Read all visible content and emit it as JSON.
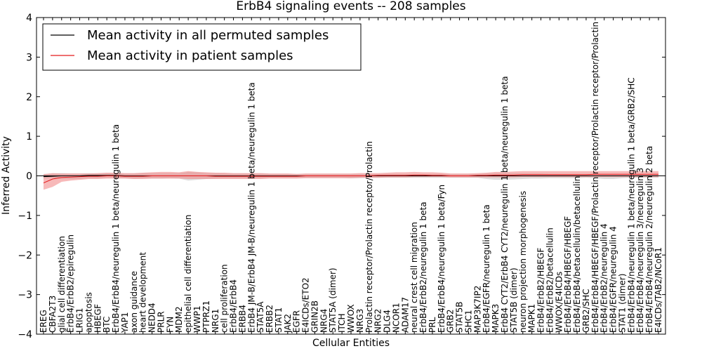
{
  "chart_data": {
    "type": "line",
    "title": "ErbB4 signaling events -- 208 samples",
    "xlabel": "Cellular Entities",
    "ylabel": "Inferred Activity",
    "ylim": [
      -4,
      4
    ],
    "yticks": [
      -4,
      -3,
      -2,
      -1,
      0,
      1,
      2,
      3,
      4
    ],
    "grid": false,
    "legend_position": "top-left",
    "colors": {
      "permuted_line": "#000000",
      "patient_line": "#e41a1c",
      "patient_band": "#f08080",
      "permuted_band": "#c8c8c8"
    },
    "categories": [
      "EREG",
      "CBFA2T3",
      "glial cell differentiation",
      "ErbB4/ErbB2/epiregulin",
      "LRIG1",
      "apoptosis",
      "HBEGF",
      "BTC",
      "ErbB4/ErbB4/neuregulin 1 beta/neuregulin 1 beta",
      "YAP1",
      "axon guidance",
      "heart development",
      "NEDD4",
      "PRLR",
      "FYN",
      "MDM2",
      "epithelial cell differentiation",
      "WWP1",
      "PTPRZ1",
      "NRG1",
      "cell proliferation",
      "ErbB4/ErbB4",
      "ERBB4",
      "ErbB4 JM-B/ErbB4 JM-B/neuregulin 1 beta/neuregulin 1 beta",
      "STAT5A",
      "ERBB2",
      "STAT1",
      "JAK2",
      "EGFR",
      "E4ICDs/ETO2",
      "GRIN2B",
      "NRG4",
      "STAT5A (dimer)",
      "ITCH",
      "WWOX",
      "NRG3",
      "Prolactin receptor/Prolactin receptor/Prolactin",
      "NRG2",
      "DLG4",
      "NCOR1",
      "ADAM17",
      "neural crest cell migration",
      "ErbB4/ErbB2/neuregulin 1 beta",
      "PRL",
      "ErbB4/ErbB4/neuregulin 1 beta/Fyn",
      "GRB2",
      "STAT5B",
      "SHC1",
      "MAP3K7IP2",
      "ErbB4/EGFR/neuregulin 1 beta",
      "MAPK3",
      "ErbB4 CYT2/ErbB4 CYT2/neuregulin 1 beta/neuregulin 1 beta",
      "STAT5B (dimer)",
      "neuron projection morphogenesis",
      "MAPK1",
      "ErbB4/ErbB2/HBEGF",
      "ErbB4/ErbB2/betacellulin",
      "WWOX/E4ICDs",
      "ErbB4/ErbB4/HBEGF/HBEGF",
      "ErbB4/ErbB4/betacellulin/betacellulin",
      "GRB2/SHC",
      "ErbB4/ErbB4/HBEGF/HBEGF/Prolactin receptor/Prolactin receptor/Prolactin",
      "ErbB4/ErbB2/neuregulin 4",
      "ErbB4/EGFR/neuregulin 4",
      "STAT1 (dimer)",
      "ErbB4/ErbB4/neuregulin 1 beta/neuregulin 1 beta/GRB2/SHC",
      "ErbB4/ErbB4/neuregulin 3/neuregulin 3",
      "ErbB4/ErbB4/neuregulin 2/neuregulin 2 beta",
      "E4ICDs/TAB2/NCoR1"
    ],
    "series": [
      {
        "name": "Mean activity in all permuted samples",
        "values": [
          -0.02,
          -0.01,
          0,
          0,
          0,
          0.01,
          0.01,
          0.01,
          0.01,
          0,
          0,
          0,
          0,
          0,
          0,
          0,
          0,
          0,
          0,
          0,
          0,
          0,
          0,
          0,
          0,
          0,
          0,
          0,
          0,
          0,
          0,
          0,
          0,
          0,
          0,
          0,
          0,
          0,
          0,
          0,
          0,
          0,
          0,
          0,
          0,
          0,
          0,
          0,
          0,
          0,
          0,
          0,
          0,
          0,
          0,
          0,
          0,
          0,
          0,
          0,
          0,
          0,
          0,
          0,
          0,
          0,
          0,
          0,
          0
        ],
        "band_low": [
          -0.07,
          -0.05,
          -0.08,
          -0.08,
          -0.08,
          -0.06,
          -0.06,
          -0.05,
          -0.05,
          -0.06,
          -0.07,
          -0.06,
          -0.07,
          -0.07,
          -0.06,
          -0.07,
          -0.12,
          -0.1,
          -0.08,
          -0.07,
          -0.06,
          -0.06,
          -0.06,
          -0.06,
          -0.06,
          -0.05,
          -0.05,
          -0.05,
          -0.05,
          -0.05,
          -0.05,
          -0.05,
          -0.05,
          -0.05,
          -0.06,
          -0.06,
          -0.05,
          -0.05,
          -0.05,
          -0.05,
          -0.05,
          -0.05,
          -0.05,
          -0.05,
          -0.05,
          -0.05,
          -0.05,
          -0.05,
          -0.05,
          -0.08,
          -0.1,
          -0.1,
          -0.09,
          -0.08,
          -0.07,
          -0.07,
          -0.06,
          -0.06,
          -0.06,
          -0.06,
          -0.05,
          -0.06,
          -0.08,
          -0.08,
          -0.06,
          -0.05,
          -0.05,
          -0.05,
          -0.05
        ],
        "band_high": [
          0.05,
          0.06,
          0.07,
          0.06,
          0.06,
          0.07,
          0.06,
          0.07,
          0.06,
          0.06,
          0.06,
          0.07,
          0.07,
          0.07,
          0.07,
          0.07,
          0.1,
          0.09,
          0.07,
          0.07,
          0.06,
          0.06,
          0.06,
          0.06,
          0.06,
          0.05,
          0.05,
          0.05,
          0.05,
          0.05,
          0.05,
          0.05,
          0.05,
          0.05,
          0.05,
          0.05,
          0.05,
          0.05,
          0.05,
          0.05,
          0.05,
          0.05,
          0.05,
          0.05,
          0.05,
          0.05,
          0.05,
          0.05,
          0.05,
          0.06,
          0.07,
          0.07,
          0.07,
          0.06,
          0.06,
          0.06,
          0.05,
          0.05,
          0.05,
          0.05,
          0.05,
          0.05,
          0.05,
          0.05,
          0.05,
          0.05,
          0.05,
          0.05,
          0.05
        ]
      },
      {
        "name": "Mean activity in patient samples",
        "values": [
          -0.18,
          -0.08,
          -0.04,
          -0.03,
          -0.02,
          -0.01,
          -0.01,
          0,
          0,
          -0.01,
          -0.01,
          -0.01,
          0,
          0,
          0,
          0,
          0,
          0,
          0,
          -0.01,
          -0.01,
          -0.01,
          -0.01,
          -0.01,
          -0.01,
          -0.01,
          -0.01,
          -0.01,
          -0.01,
          0,
          0,
          0,
          0,
          0,
          0,
          0,
          0,
          0.01,
          0.01,
          0.01,
          0.01,
          0.02,
          0.02,
          0.01,
          0.01,
          0,
          0,
          0,
          0.01,
          0.01,
          0.02,
          0.02,
          0.02,
          0.03,
          0.03,
          0.03,
          0.03,
          0.03,
          0.03,
          0.03,
          0.03,
          0.04,
          0.04,
          0.04,
          0.04,
          0.04,
          0.04,
          0.04,
          0.04
        ],
        "band_low": [
          -0.35,
          -0.28,
          -0.15,
          -0.12,
          -0.1,
          -0.08,
          -0.08,
          -0.07,
          -0.07,
          -0.07,
          -0.08,
          -0.08,
          -0.07,
          -0.07,
          -0.07,
          -0.07,
          -0.08,
          -0.08,
          -0.08,
          -0.08,
          -0.08,
          -0.08,
          -0.08,
          -0.08,
          -0.08,
          -0.07,
          -0.07,
          -0.07,
          -0.07,
          -0.06,
          -0.06,
          -0.06,
          -0.06,
          -0.06,
          -0.06,
          -0.05,
          -0.05,
          -0.05,
          -0.04,
          -0.04,
          -0.04,
          -0.03,
          -0.03,
          -0.03,
          -0.03,
          -0.04,
          -0.04,
          -0.04,
          -0.04,
          -0.04,
          -0.04,
          -0.04,
          -0.04,
          -0.03,
          -0.03,
          -0.03,
          -0.03,
          -0.03,
          -0.03,
          -0.03,
          -0.03,
          -0.03,
          -0.03,
          -0.03,
          -0.03,
          -0.03,
          -0.03,
          -0.03,
          -0.03
        ],
        "band_high": [
          0.04,
          0.07,
          0.06,
          0.06,
          0.06,
          0.06,
          0.07,
          0.08,
          0.08,
          0.07,
          0.07,
          0.08,
          0.09,
          0.1,
          0.1,
          0.09,
          0.12,
          0.1,
          0.09,
          0.08,
          0.08,
          0.07,
          0.07,
          0.07,
          0.07,
          0.06,
          0.06,
          0.06,
          0.05,
          0.06,
          0.06,
          0.06,
          0.06,
          0.06,
          0.06,
          0.07,
          0.07,
          0.07,
          0.08,
          0.09,
          0.09,
          0.1,
          0.09,
          0.09,
          0.08,
          0.06,
          0.06,
          0.06,
          0.07,
          0.08,
          0.1,
          0.1,
          0.11,
          0.12,
          0.12,
          0.12,
          0.12,
          0.12,
          0.12,
          0.12,
          0.12,
          0.12,
          0.12,
          0.12,
          0.12,
          0.12,
          0.12,
          0.12,
          0.12
        ]
      }
    ]
  }
}
